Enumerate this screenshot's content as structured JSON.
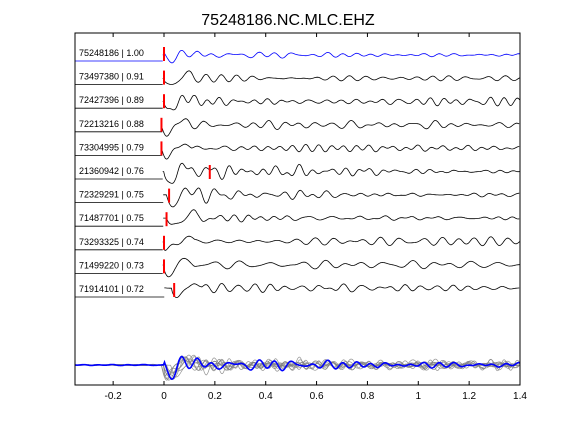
{
  "chart_data": {
    "type": "line",
    "title": "75248186.NC.MLC.EHZ",
    "xlabel": "",
    "ylabel": "",
    "xlim": [
      -0.35,
      1.4
    ],
    "xticks": [
      -0.2,
      0,
      0.2,
      0.4,
      0.6,
      0.8,
      1,
      1.2,
      1.4
    ],
    "grid": false,
    "colors": {
      "reference": "#0000ff",
      "trace": "#000000",
      "pick": "#ff0000",
      "stack": "#808080",
      "axes": "#000000"
    },
    "series": [
      {
        "label": "75248186 | 1.00",
        "pick_time": 0.0,
        "amplitude": 0.55,
        "shift": 0.0,
        "seed": 1,
        "color": "#0000ff"
      },
      {
        "label": "73497380 | 0.91",
        "pick_time": 0.0,
        "amplitude": 0.75,
        "shift": 0.0,
        "seed": 2,
        "color": "#000000"
      },
      {
        "label": "72427396 | 0.89",
        "pick_time": 0.0,
        "amplitude": 0.75,
        "shift": 0.0,
        "seed": 3,
        "color": "#000000"
      },
      {
        "label": "72213216 | 0.88",
        "pick_time": -0.01,
        "amplitude": 0.75,
        "shift": -0.01,
        "seed": 4,
        "color": "#000000"
      },
      {
        "label": "73304995 | 0.79",
        "pick_time": -0.01,
        "amplitude": 0.8,
        "shift": -0.01,
        "seed": 5,
        "color": "#000000"
      },
      {
        "label": "21360942 | 0.76",
        "pick_time": 0.18,
        "amplitude": 0.9,
        "shift": 0.0,
        "seed": 6,
        "color": "#000000"
      },
      {
        "label": "72329291 | 0.75",
        "pick_time": 0.02,
        "amplitude": 0.85,
        "shift": 0.01,
        "seed": 7,
        "color": "#000000"
      },
      {
        "label": "71487701 | 0.75",
        "pick_time": 0.01,
        "amplitude": 0.85,
        "shift": 0.01,
        "seed": 8,
        "color": "#000000"
      },
      {
        "label": "73293325 | 0.74",
        "pick_time": 0.0,
        "amplitude": 0.85,
        "shift": 0.0,
        "seed": 9,
        "color": "#000000"
      },
      {
        "label": "71499220 | 0.73",
        "pick_time": 0.0,
        "amplitude": 0.8,
        "shift": 0.0,
        "seed": 10,
        "color": "#000000"
      },
      {
        "label": "71914101 | 0.72",
        "pick_time": 0.04,
        "amplitude": 0.8,
        "shift": 0.03,
        "seed": 11,
        "color": "#000000"
      }
    ],
    "stack": {
      "description": "overlay of all traces",
      "reference_color": "#0000ff",
      "trace_color": "#808080"
    }
  }
}
